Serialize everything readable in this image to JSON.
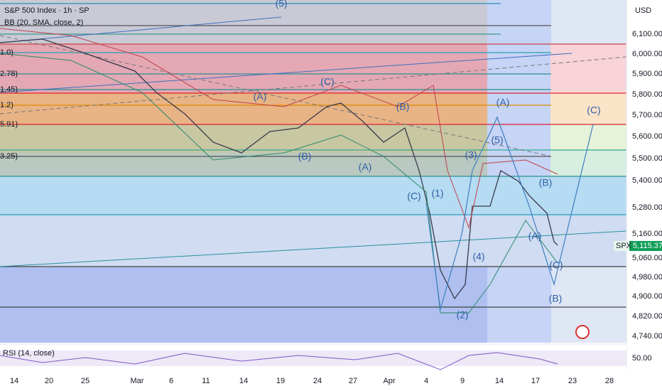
{
  "header": {
    "title": "S&P 500 Index · 1h · SP",
    "indicator": "BB (20, SMA, close, 2)",
    "currency": "USD"
  },
  "rsi_pane": {
    "label": "RSI (14, close)",
    "level": "50.00"
  },
  "price_axis": [
    "6,100.00",
    "6,000.00",
    "5,900.00",
    "5,800.00",
    "5,700.00",
    "5,600.00",
    "5,500.00",
    "5,400.00",
    "5,280.00",
    "5,160.00",
    "5,060.00",
    "4,980.00",
    "4,900.00",
    "4,820.00",
    "4,740.00"
  ],
  "time_axis": [
    "14",
    "20",
    "25",
    "Mar",
    "6",
    "11",
    "14",
    "19",
    "24",
    "27",
    "Apr",
    "4",
    "9",
    "14",
    "17",
    "23",
    "28"
  ],
  "last_price": {
    "symbol": "SPX",
    "value": "5,115.37"
  },
  "fib_labels": [
    "1.0)",
    "2.78)",
    "1.45)",
    "1.2)",
    "5.91)",
    "3.25)"
  ],
  "wave_labels": [
    "(5)",
    "(A)",
    "(C)",
    "(B)",
    "(B)",
    "(A)",
    "(C)",
    "(1)",
    "(3)",
    "(5)",
    "(A)",
    "(C)",
    "(B)",
    "(A)",
    "(4)",
    "(C)",
    "(B)",
    "(2)"
  ]
}
